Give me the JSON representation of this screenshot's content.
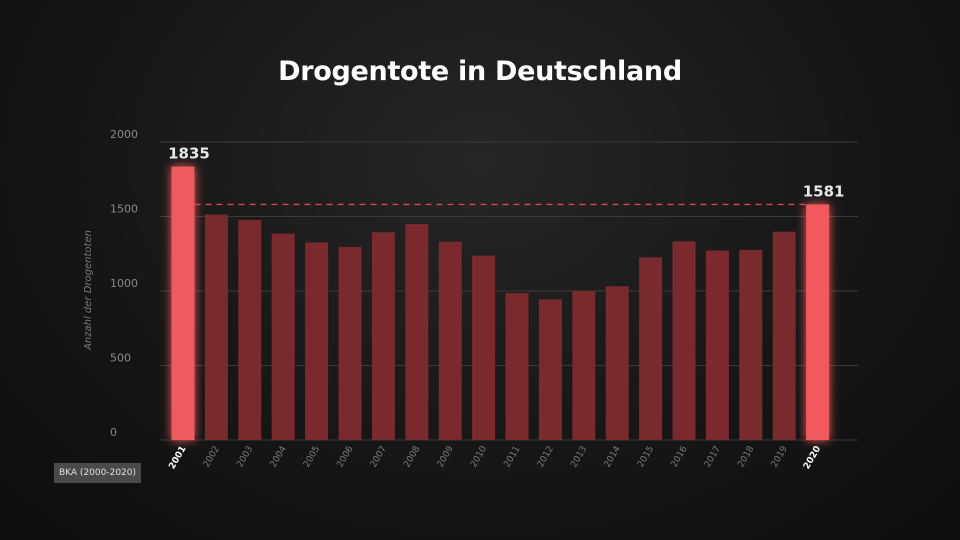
{
  "chart_data": {
    "type": "bar",
    "title": "Drogentote in Deutschland",
    "ylabel": "Anzahl der Drogentoten",
    "xlabel": "",
    "ylim": [
      0,
      2000
    ],
    "yticks": [
      0,
      500,
      1000,
      1500,
      2000
    ],
    "grid": true,
    "categories": [
      "2001",
      "2002",
      "2003",
      "2004",
      "2005",
      "2006",
      "2007",
      "2008",
      "2009",
      "2010",
      "2011",
      "2012",
      "2013",
      "2014",
      "2015",
      "2016",
      "2017",
      "2018",
      "2019",
      "2020"
    ],
    "values": [
      1835,
      1513,
      1477,
      1385,
      1326,
      1296,
      1394,
      1449,
      1331,
      1237,
      986,
      944,
      1002,
      1032,
      1226,
      1333,
      1272,
      1276,
      1398,
      1581
    ],
    "highlighted": [
      "2001",
      "2020"
    ],
    "value_labels": [
      {
        "category": "2001",
        "text": "1835"
      },
      {
        "category": "2020",
        "text": "1581"
      }
    ],
    "reference_line": {
      "value": 1581,
      "style": "dashed"
    },
    "colors": {
      "bar": "#7a2a2d",
      "bar_highlight": "#f05a5c",
      "reference_line": "#d9474a",
      "grid": "#3a3a3a"
    }
  },
  "source": "BKA (2000-2020)"
}
